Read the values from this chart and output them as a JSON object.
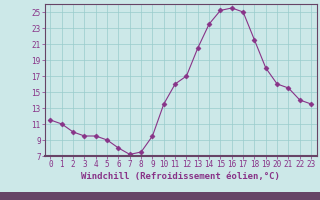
{
  "x": [
    0,
    1,
    2,
    3,
    4,
    5,
    6,
    7,
    8,
    9,
    10,
    11,
    12,
    13,
    14,
    15,
    16,
    17,
    18,
    19,
    20,
    21,
    22,
    23
  ],
  "y": [
    11.5,
    11.0,
    10.0,
    9.5,
    9.5,
    9.0,
    8.0,
    7.2,
    7.5,
    9.5,
    13.5,
    16.0,
    17.0,
    20.5,
    23.5,
    25.2,
    25.5,
    25.0,
    21.5,
    18.0,
    16.0,
    15.5,
    14.0,
    13.5
  ],
  "line_color": "#883388",
  "marker": "D",
  "marker_size": 2.5,
  "bg_color": "#cce8e8",
  "grid_color": "#99cccc",
  "xlabel": "Windchill (Refroidissement éolien,°C)",
  "xlim": [
    -0.5,
    23.5
  ],
  "ylim": [
    7,
    26
  ],
  "yticks": [
    7,
    9,
    11,
    13,
    15,
    17,
    19,
    21,
    23,
    25
  ],
  "xticks": [
    0,
    1,
    2,
    3,
    4,
    5,
    6,
    7,
    8,
    9,
    10,
    11,
    12,
    13,
    14,
    15,
    16,
    17,
    18,
    19,
    20,
    21,
    22,
    23
  ],
  "tick_color": "#883388",
  "label_color": "#883388",
  "label_fontsize": 6.5,
  "tick_fontsize": 5.5,
  "spine_color": "#664466",
  "bottom_bar_color": "#664466"
}
